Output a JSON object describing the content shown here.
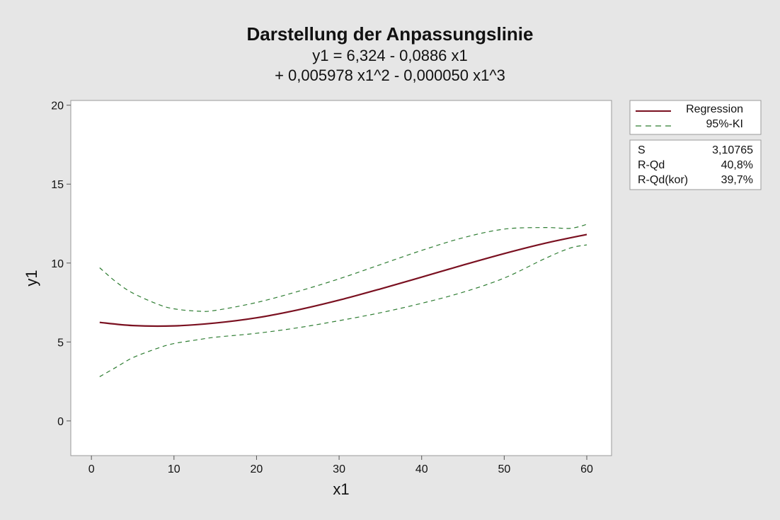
{
  "chart_data": {
    "type": "line",
    "title": "Darstellung der Anpassungslinie",
    "subtitle_lines": [
      "y1 = 6,324 - 0,0886 x1",
      "+ 0,005978 x1^2 - 0,000050 x1^3"
    ],
    "xlabel": "x1",
    "ylabel": "y1",
    "xlim": [
      -2.5,
      63
    ],
    "ylim": [
      -2.2,
      20.3
    ],
    "x_ticks": [
      0,
      10,
      20,
      30,
      40,
      50,
      60
    ],
    "x_tick_labels": [
      "0",
      "10",
      "20",
      "30",
      "40",
      "50",
      "60"
    ],
    "y_ticks": [
      0,
      5,
      10,
      15,
      20
    ],
    "y_tick_labels": [
      "0",
      "5",
      "10",
      "15",
      "20"
    ],
    "grid": false,
    "legend_position": "right",
    "series": [
      {
        "name": "Regression",
        "color": "#7a1020",
        "style": "solid",
        "x": [
          1,
          5,
          10,
          15,
          20,
          25,
          30,
          35,
          40,
          45,
          50,
          55,
          60
        ],
        "y": [
          6.24,
          6.04,
          6.02,
          6.2,
          6.53,
          7.03,
          7.65,
          8.36,
          9.11,
          9.87,
          10.6,
          11.26,
          11.81
        ]
      },
      {
        "name": "95%-KI",
        "color": "#2e7d32",
        "style": "dashed",
        "x": [
          1,
          3,
          5,
          8,
          10,
          13,
          15,
          20,
          25,
          30,
          35,
          40,
          45,
          50,
          55,
          58,
          60
        ],
        "y": [
          9.7,
          8.8,
          8.1,
          7.4,
          7.1,
          6.95,
          7.0,
          7.5,
          8.2,
          9.0,
          9.9,
          10.8,
          11.6,
          12.15,
          12.25,
          12.2,
          12.45
        ]
      },
      {
        "name": "",
        "color": "#2e7d32",
        "style": "dashed",
        "x": [
          1,
          3,
          5,
          8,
          10,
          13,
          15,
          20,
          25,
          30,
          35,
          40,
          45,
          50,
          55,
          58,
          60
        ],
        "y": [
          2.8,
          3.4,
          4.0,
          4.6,
          4.9,
          5.15,
          5.3,
          5.55,
          5.9,
          6.35,
          6.85,
          7.45,
          8.15,
          9.05,
          10.3,
          10.95,
          11.15
        ]
      }
    ],
    "legend": {
      "entries": [
        {
          "label": "Regression",
          "color": "#7a1020",
          "style": "solid"
        },
        {
          "label": "95%-KI",
          "color": "#2e7d32",
          "style": "dashed"
        }
      ]
    },
    "stats": [
      {
        "label": "S",
        "value": "3,10765"
      },
      {
        "label": "R-Qd",
        "value": "40,8%"
      },
      {
        "label": "R-Qd(kor)",
        "value": "39,7%"
      }
    ]
  }
}
